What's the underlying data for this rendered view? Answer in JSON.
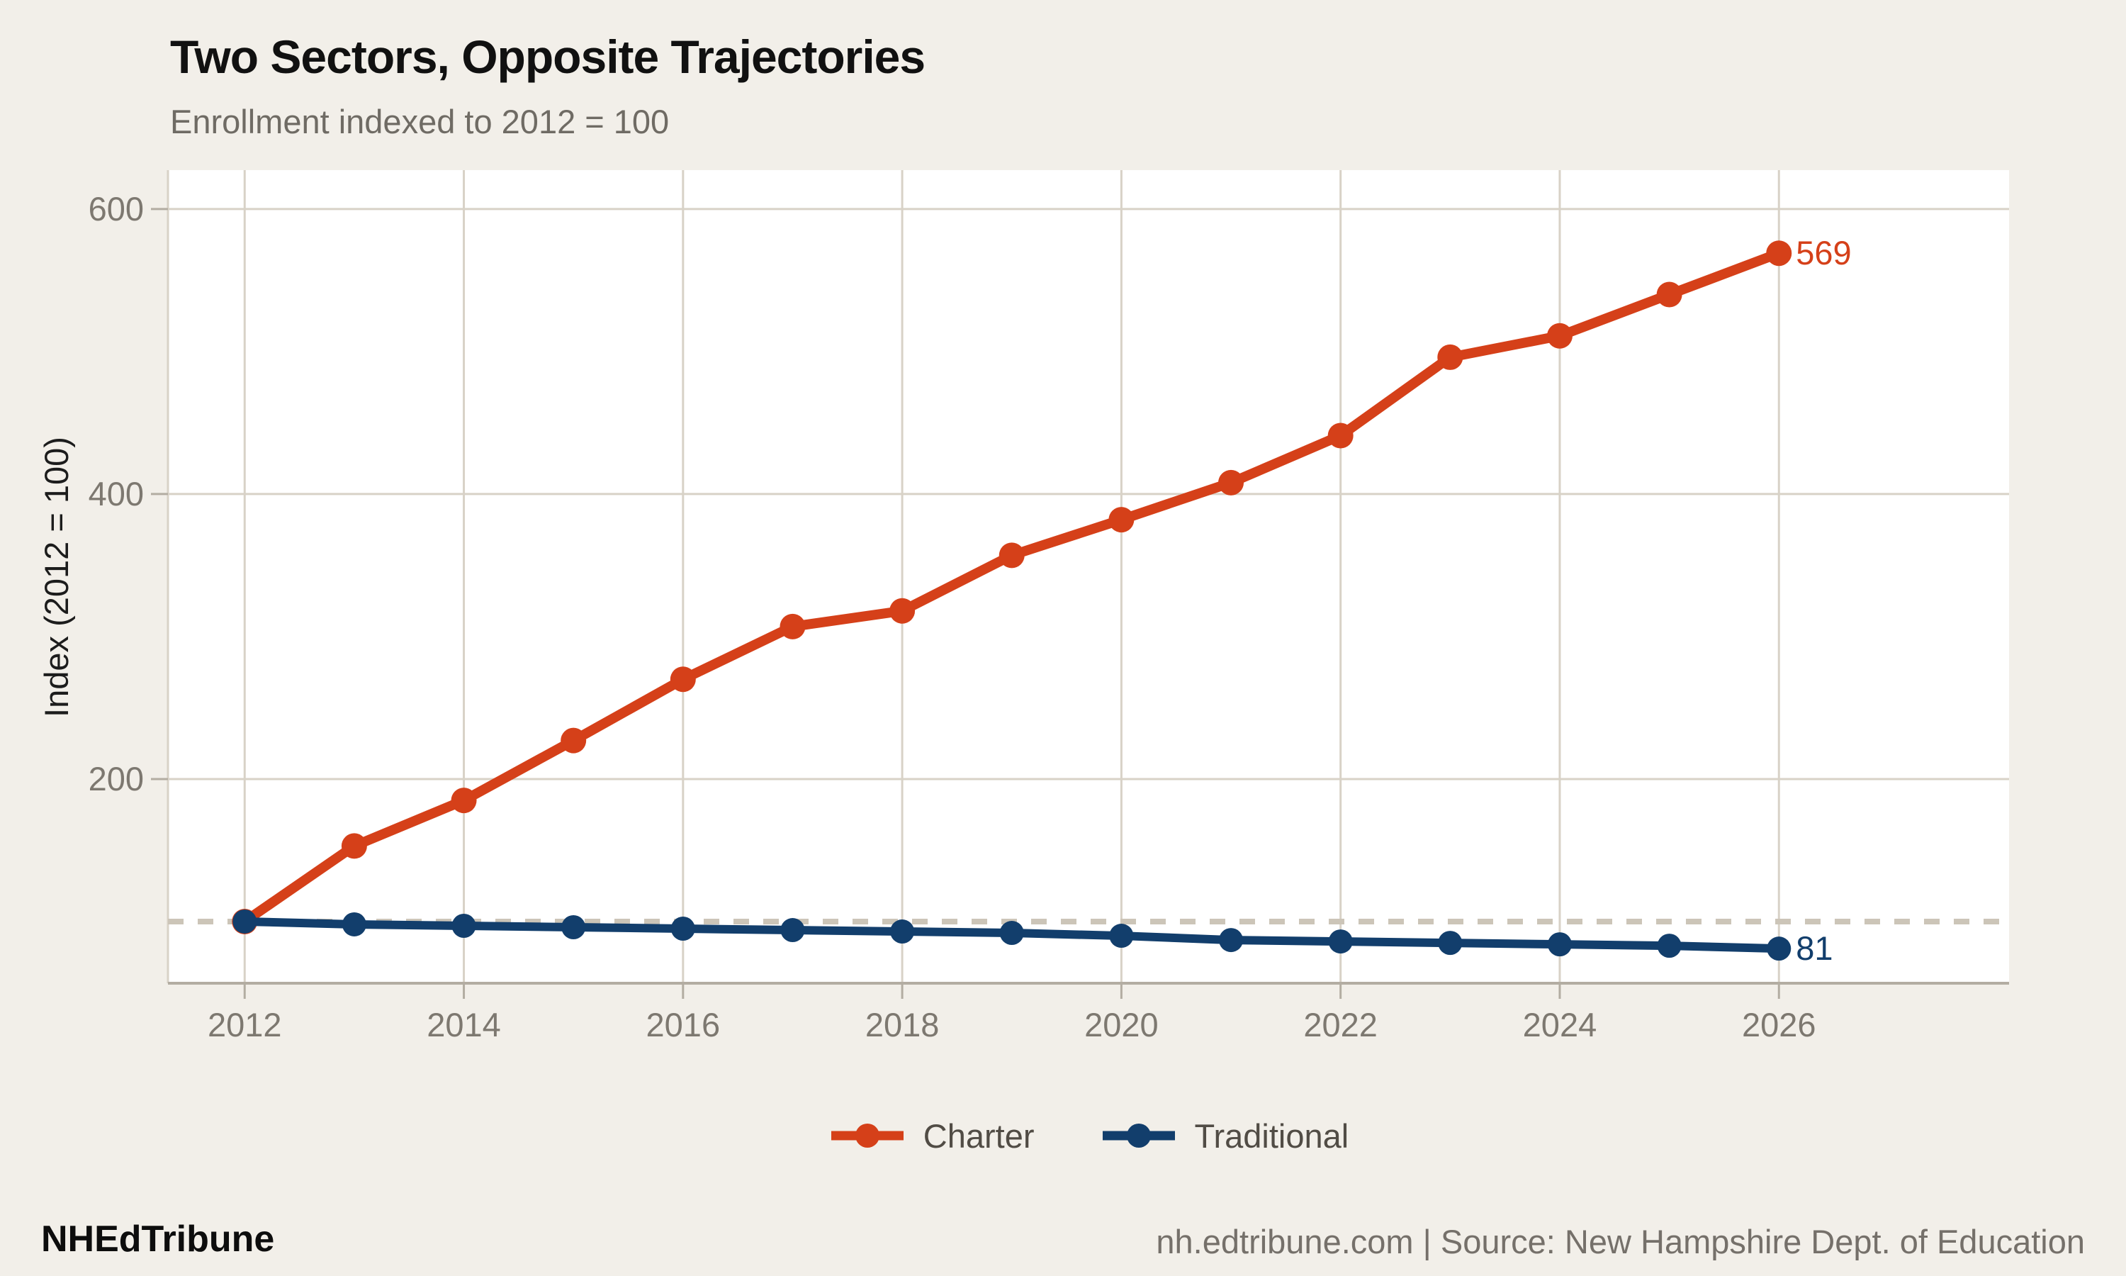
{
  "header": {
    "title": "Two Sectors, Opposite Trajectories",
    "subtitle": "Enrollment indexed to 2012 = 100"
  },
  "chart_data": {
    "type": "line",
    "x": [
      2012,
      2013,
      2014,
      2015,
      2016,
      2017,
      2018,
      2019,
      2020,
      2021,
      2022,
      2023,
      2024,
      2025,
      2026
    ],
    "series": [
      {
        "name": "Charter",
        "color": "#d54019",
        "values": [
          100,
          153,
          185,
          227,
          270,
          307,
          318,
          357,
          382,
          408,
          441,
          496,
          511,
          540,
          569
        ],
        "end_label": "569"
      },
      {
        "name": "Traditional",
        "color": "#123e6c",
        "values": [
          100,
          98,
          97,
          96,
          95,
          94,
          93,
          92,
          90,
          87,
          86,
          85,
          84,
          83,
          81
        ],
        "end_label": "81"
      }
    ],
    "title": "Two Sectors, Opposite Trajectories",
    "subtitle": "Enrollment indexed to 2012 = 100",
    "xlabel": "",
    "ylabel": "Index (2012 = 100)",
    "x_ticks": [
      2012,
      2014,
      2016,
      2018,
      2020,
      2022,
      2024,
      2026
    ],
    "y_ticks": [
      200,
      400,
      600
    ],
    "reference_line": {
      "value": 100,
      "style": "dashed"
    },
    "xlim": [
      2011.3,
      2028.1
    ],
    "ylim": [
      56.7,
      627.3
    ],
    "grid": true,
    "legend_position": "bottom"
  },
  "legend": {
    "items": [
      {
        "label": "Charter"
      },
      {
        "label": "Traditional"
      }
    ]
  },
  "footer": {
    "brand": "NHEdTribune",
    "source": "nh.edtribune.com | Source: New Hampshire Dept. of Education"
  },
  "colors": {
    "background": "#f2efe9",
    "panel": "#ffffff",
    "grid": "#d8d2c7",
    "dashed_reference": "#ccc5b8",
    "axis_line": "#b3ada2",
    "tick_text": "#7d7870",
    "title": "#111111",
    "subtitle": "#6f6b64",
    "footer_text": "#75706a",
    "charter": "#d54019",
    "traditional": "#123e6c"
  }
}
